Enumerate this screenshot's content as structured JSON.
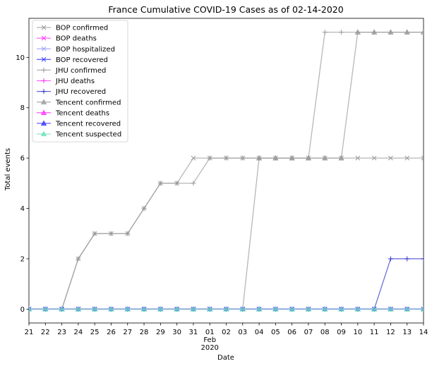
{
  "chart_data": {
    "type": "line",
    "title": "France Cumulative COVID-19 Cases as of 02-14-2020",
    "xlabel": "Date",
    "ylabel": "Total events",
    "x": [
      "2020-01-21",
      "2020-01-22",
      "2020-01-23",
      "2020-01-24",
      "2020-01-25",
      "2020-01-26",
      "2020-01-27",
      "2020-01-28",
      "2020-01-29",
      "2020-01-30",
      "2020-01-31",
      "2020-02-01",
      "2020-02-02",
      "2020-02-03",
      "2020-02-04",
      "2020-02-05",
      "2020-02-06",
      "2020-02-07",
      "2020-02-08",
      "2020-02-09",
      "2020-02-10",
      "2020-02-11",
      "2020-02-12",
      "2020-02-13",
      "2020-02-14"
    ],
    "x_tick_labels": [
      "21",
      "22",
      "23",
      "24",
      "25",
      "26",
      "27",
      "28",
      "29",
      "30",
      "31",
      "01",
      "02",
      "03",
      "04",
      "05",
      "06",
      "07",
      "08",
      "09",
      "10",
      "11",
      "12",
      "13",
      "14"
    ],
    "x_tick_sublabel": {
      "month": "Feb",
      "year": "2020"
    },
    "ylim": [
      -0.55,
      11.55
    ],
    "y_ticks": [
      0,
      2,
      4,
      6,
      8,
      10
    ],
    "grid": false,
    "legend_position": "top-left",
    "series": [
      {
        "name": "BOP confirmed",
        "color": "#999999",
        "marker": "x",
        "values": [
          0,
          0,
          0,
          2,
          3,
          3,
          3,
          4,
          5,
          5,
          6,
          6,
          6,
          6,
          6,
          6,
          6,
          6,
          6,
          6,
          6,
          6,
          6,
          6,
          6
        ]
      },
      {
        "name": "BOP deaths",
        "color": "#ff33ff",
        "marker": "x",
        "values": [
          0,
          0,
          0,
          0,
          0,
          0,
          0,
          0,
          0,
          0,
          0,
          0,
          0,
          0,
          0,
          0,
          0,
          0,
          0,
          0,
          0,
          0,
          0,
          0,
          0
        ]
      },
      {
        "name": "BOP hospitalized",
        "color": "#9999ff",
        "marker": "x",
        "values": [
          0,
          0,
          0,
          0,
          0,
          0,
          0,
          0,
          0,
          0,
          0,
          0,
          0,
          0,
          0,
          0,
          0,
          0,
          0,
          0,
          0,
          0,
          0,
          0,
          0
        ]
      },
      {
        "name": "BOP recovered",
        "color": "#3333ff",
        "marker": "x",
        "values": [
          0,
          0,
          0,
          0,
          0,
          0,
          0,
          0,
          0,
          0,
          0,
          0,
          0,
          0,
          0,
          0,
          0,
          0,
          0,
          0,
          0,
          0,
          0,
          0,
          0
        ]
      },
      {
        "name": "JHU confirmed",
        "color": "#999999",
        "marker": "+",
        "values": [
          0,
          0,
          0,
          2,
          3,
          3,
          3,
          4,
          5,
          5,
          5,
          6,
          6,
          6,
          6,
          6,
          6,
          6,
          11,
          11,
          11,
          11,
          11,
          11,
          11
        ]
      },
      {
        "name": "JHU deaths",
        "color": "#ff33ff",
        "marker": "+",
        "values": [
          0,
          0,
          0,
          0,
          0,
          0,
          0,
          0,
          0,
          0,
          0,
          0,
          0,
          0,
          0,
          0,
          0,
          0,
          0,
          0,
          0,
          0,
          0,
          0,
          0
        ]
      },
      {
        "name": "JHU recovered",
        "color": "#3333cc",
        "marker": "+",
        "values": [
          0,
          0,
          0,
          0,
          0,
          0,
          0,
          0,
          0,
          0,
          0,
          0,
          0,
          0,
          0,
          0,
          0,
          0,
          0,
          0,
          0,
          0,
          2,
          2,
          2
        ]
      },
      {
        "name": "Tencent confirmed",
        "color": "#999999",
        "marker": "^",
        "values": [
          0,
          0,
          0,
          0,
          0,
          0,
          0,
          0,
          0,
          0,
          0,
          0,
          0,
          0,
          6,
          6,
          6,
          6,
          6,
          6,
          11,
          11,
          11,
          11,
          11
        ]
      },
      {
        "name": "Tencent deaths",
        "color": "#ff33ff",
        "marker": "^",
        "values": [
          0,
          0,
          0,
          0,
          0,
          0,
          0,
          0,
          0,
          0,
          0,
          0,
          0,
          0,
          0,
          0,
          0,
          0,
          0,
          0,
          0,
          0,
          0,
          0,
          0
        ]
      },
      {
        "name": "Tencent recovered",
        "color": "#3333ff",
        "marker": "^",
        "values": [
          0,
          0,
          0,
          0,
          0,
          0,
          0,
          0,
          0,
          0,
          0,
          0,
          0,
          0,
          0,
          0,
          0,
          0,
          0,
          0,
          0,
          0,
          0,
          0,
          0
        ]
      },
      {
        "name": "Tencent suspected",
        "color": "#66ddbb",
        "marker": "^",
        "values": [
          0,
          0,
          0,
          0,
          0,
          0,
          0,
          0,
          0,
          0,
          0,
          0,
          0,
          0,
          0,
          0,
          0,
          0,
          0,
          0,
          0,
          0,
          0,
          0,
          0
        ]
      }
    ]
  }
}
